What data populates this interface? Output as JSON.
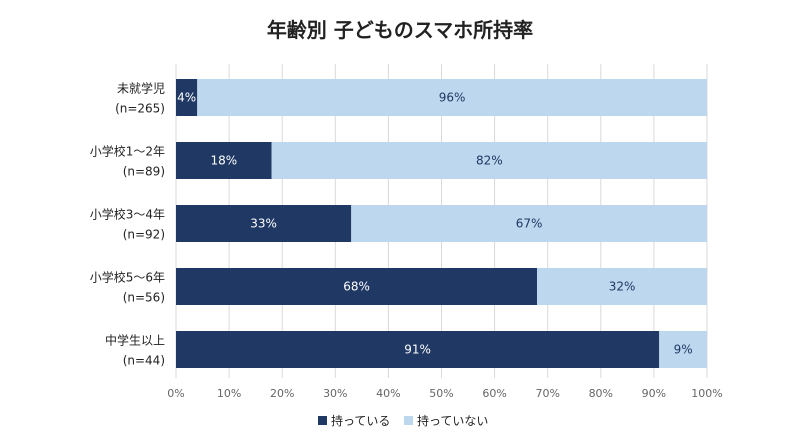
{
  "chart_data": {
    "type": "bar",
    "orientation": "horizontal",
    "stacked": true,
    "title": "年齢別 子どものスマホ所持率",
    "categories": [
      {
        "name": "未就学児",
        "n": "(n=265)"
      },
      {
        "name": "小学校1〜2年",
        "n": "(n=89)"
      },
      {
        "name": "小学校3〜4年",
        "n": "(n=92)"
      },
      {
        "name": "小学校5〜6年",
        "n": "(n=56)"
      },
      {
        "name": "中学生以上",
        "n": "(n=44)"
      }
    ],
    "series": [
      {
        "name": "持っている",
        "color": "#1f3864",
        "label_color": "#ffffff",
        "values": [
          4,
          18,
          33,
          68,
          91
        ],
        "labels": [
          "4%",
          "18%",
          "33%",
          "68%",
          "91%"
        ]
      },
      {
        "name": "持っていない",
        "color": "#bdd7ee",
        "label_color": "#1f3864",
        "values": [
          96,
          82,
          67,
          32,
          9
        ],
        "labels": [
          "96%",
          "82%",
          "67%",
          "32%",
          "9%"
        ]
      }
    ],
    "xlim": [
      0,
      100
    ],
    "x_ticks": [
      "0%",
      "10%",
      "20%",
      "30%",
      "40%",
      "50%",
      "60%",
      "70%",
      "80%",
      "90%",
      "100%"
    ],
    "grid": true,
    "legend_position": "bottom"
  }
}
